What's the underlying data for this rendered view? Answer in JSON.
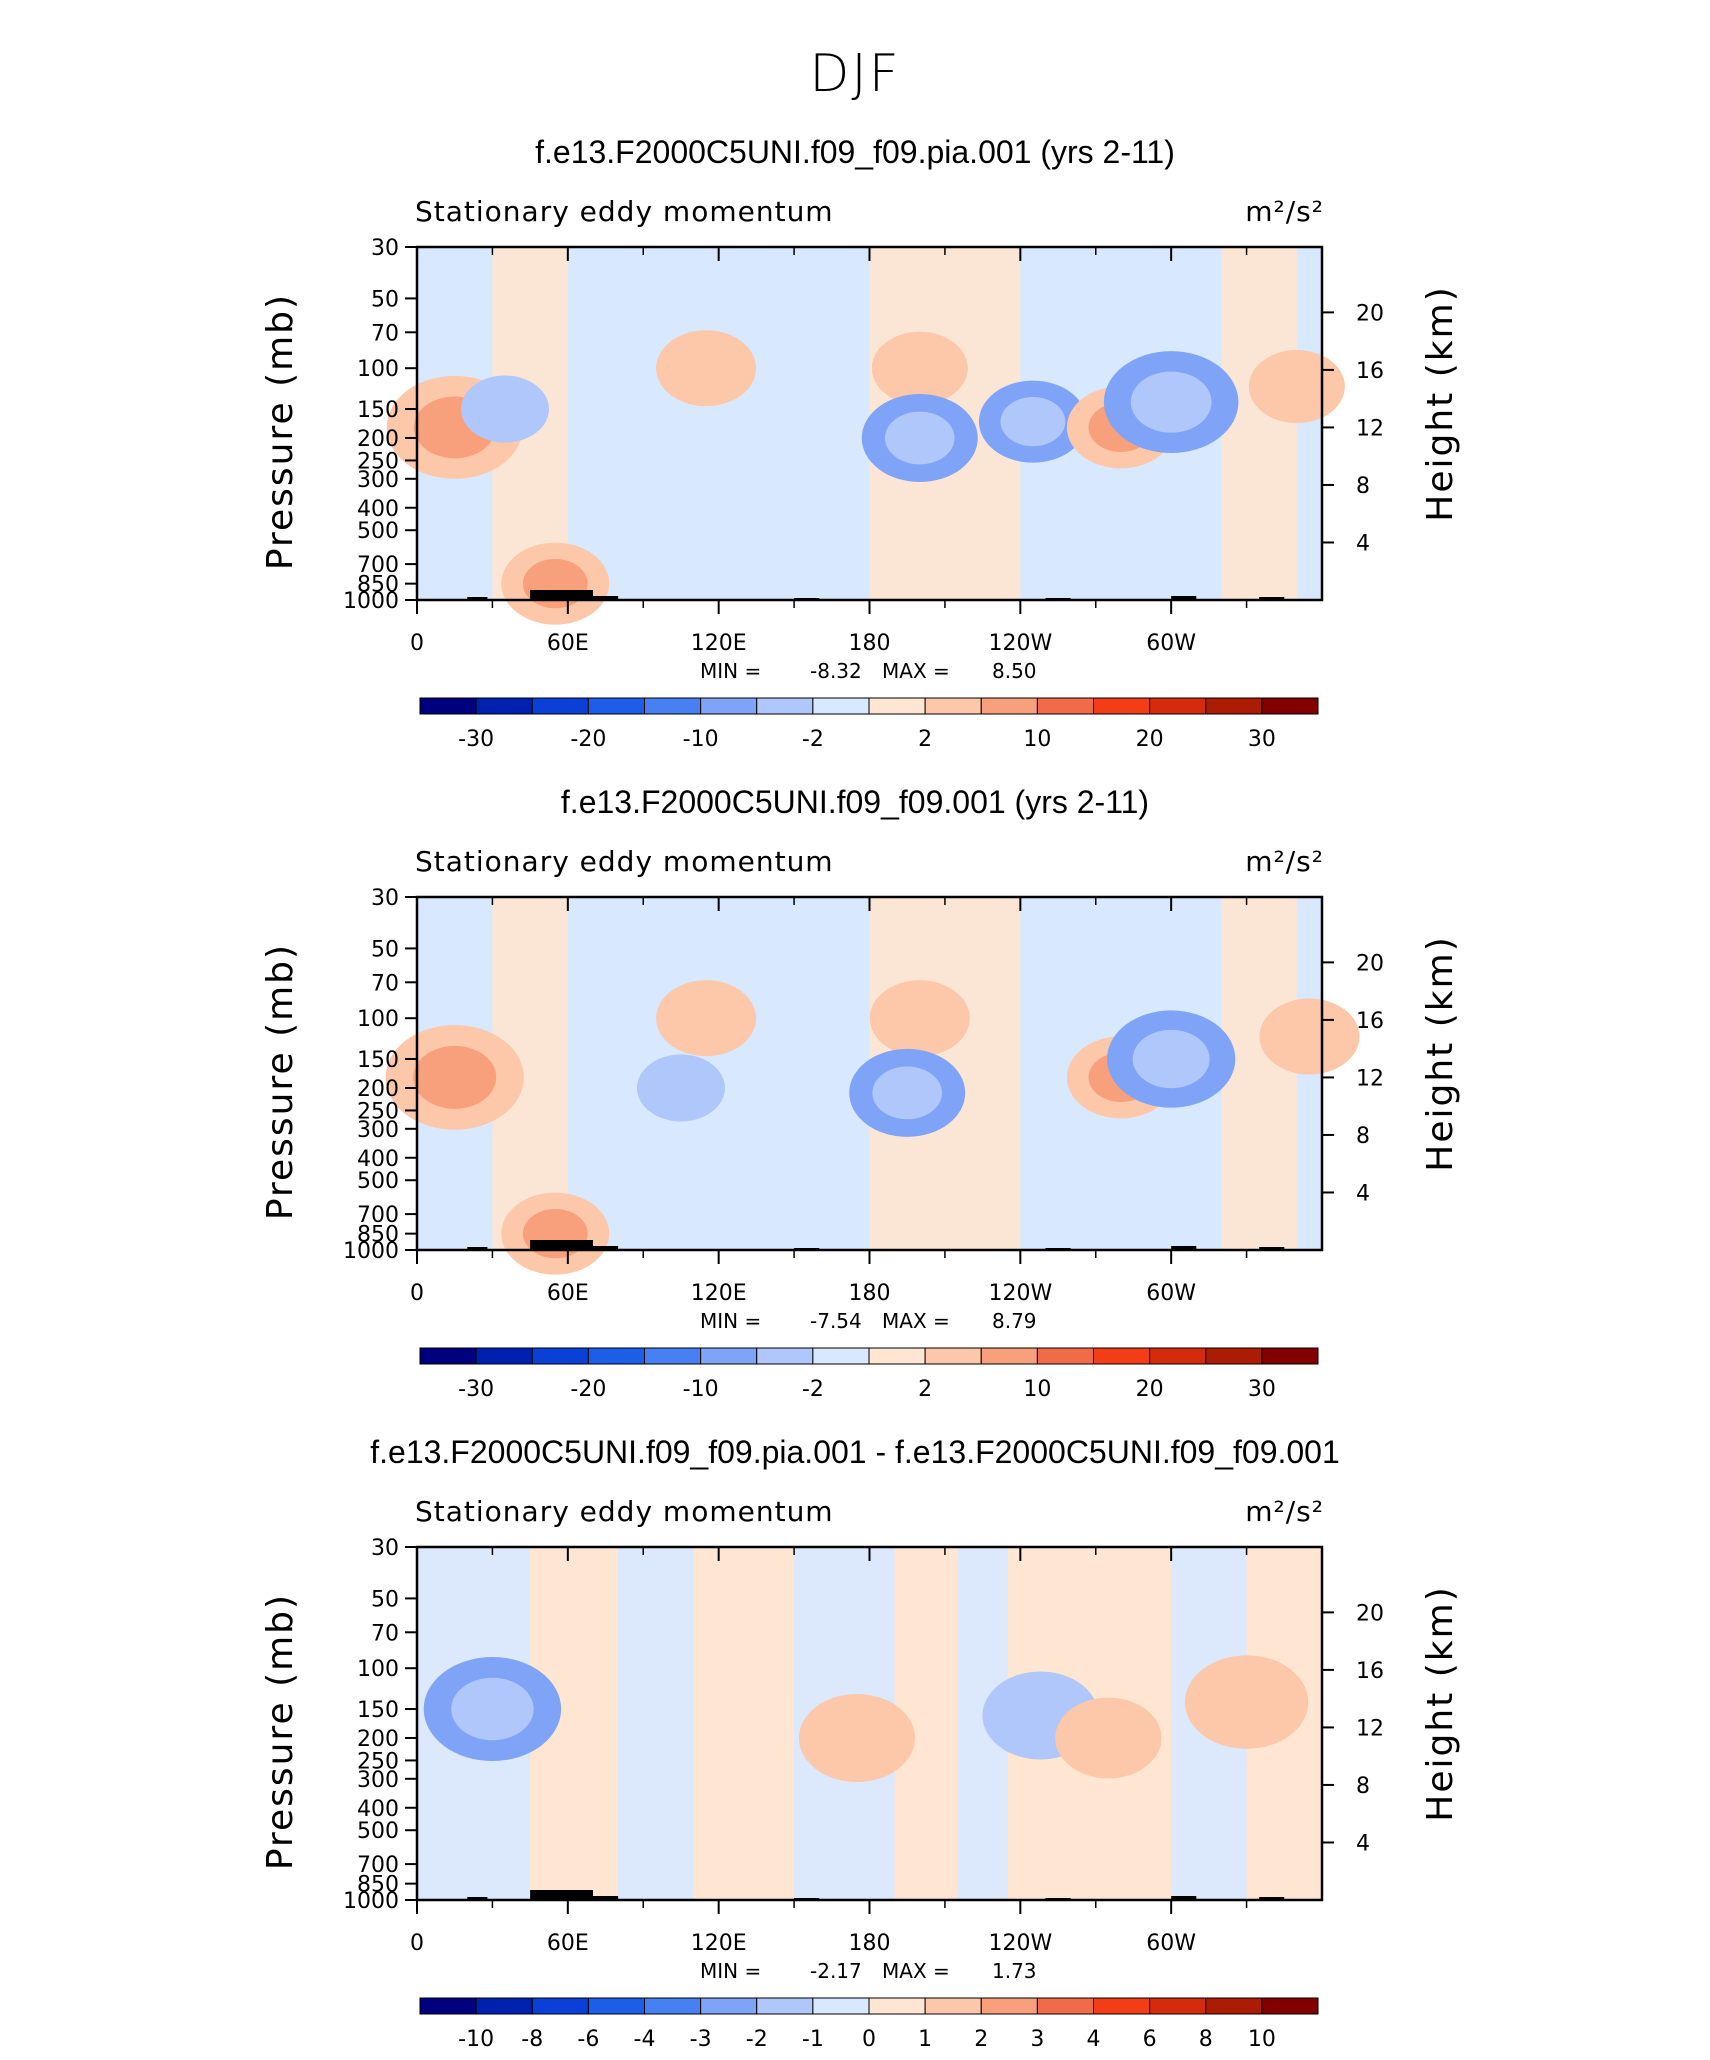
{
  "title": "DJF",
  "chart_data": [
    {
      "type": "heatmap",
      "title": "f.e13.F2000C5UNI.f09_f09.pia.001 (yrs 2-11)",
      "left_label": "Stationary eddy momentum",
      "right_label": "m²/s²",
      "xlabel": "",
      "ylabel": "Pressure (mb)",
      "y2label": "Height (km)",
      "x_ticks": [
        "0",
        "60E",
        "120E",
        "180",
        "120W",
        "60W"
      ],
      "y_ticks": [
        "30",
        "50",
        "70",
        "100",
        "150",
        "200",
        "250",
        "300",
        "400",
        "500",
        "700",
        "850",
        "1000"
      ],
      "y2_ticks": [
        "20",
        "16",
        "12",
        "8",
        "4"
      ],
      "stats": {
        "min_label": "MIN =",
        "min": "-8.32",
        "max_label": "MAX =",
        "max": "8.50"
      },
      "colorbar_labels": [
        "-30",
        "-20",
        "-10",
        "-2",
        "2",
        "10",
        "20",
        "30"
      ],
      "features": [
        {
          "x": 15,
          "p": 180,
          "v": 8.5
        },
        {
          "x": 35,
          "p": 150,
          "v": -2.5
        },
        {
          "x": 55,
          "p": 850,
          "v": 5
        },
        {
          "x": 115,
          "p": 100,
          "v": 4
        },
        {
          "x": 200,
          "p": 100,
          "v": 3.5
        },
        {
          "x": 200,
          "p": 200,
          "v": -6
        },
        {
          "x": 245,
          "p": 170,
          "v": -5
        },
        {
          "x": 280,
          "p": 180,
          "v": 5
        },
        {
          "x": 300,
          "p": 140,
          "v": -8.32
        },
        {
          "x": 350,
          "p": 120,
          "v": 3.5
        }
      ]
    },
    {
      "type": "heatmap",
      "title": "f.e13.F2000C5UNI.f09_f09.001 (yrs 2-11)",
      "left_label": "Stationary eddy momentum",
      "right_label": "m²/s²",
      "xlabel": "",
      "ylabel": "Pressure (mb)",
      "y2label": "Height (km)",
      "x_ticks": [
        "0",
        "60E",
        "120E",
        "180",
        "120W",
        "60W"
      ],
      "y_ticks": [
        "30",
        "50",
        "70",
        "100",
        "150",
        "200",
        "250",
        "300",
        "400",
        "500",
        "700",
        "850",
        "1000"
      ],
      "y2_ticks": [
        "20",
        "16",
        "12",
        "8",
        "4"
      ],
      "stats": {
        "min_label": "MIN =",
        "min": "-7.54",
        "max_label": "MAX =",
        "max": "8.79"
      },
      "colorbar_labels": [
        "-30",
        "-20",
        "-10",
        "-2",
        "2",
        "10",
        "20",
        "30"
      ],
      "features": [
        {
          "x": 15,
          "p": 180,
          "v": 8.79
        },
        {
          "x": 105,
          "p": 200,
          "v": -2.5
        },
        {
          "x": 55,
          "p": 850,
          "v": 5
        },
        {
          "x": 115,
          "p": 100,
          "v": 4
        },
        {
          "x": 200,
          "p": 100,
          "v": 4
        },
        {
          "x": 195,
          "p": 210,
          "v": -6
        },
        {
          "x": 280,
          "p": 180,
          "v": 5
        },
        {
          "x": 300,
          "p": 150,
          "v": -7.54
        },
        {
          "x": 355,
          "p": 120,
          "v": 4
        }
      ]
    },
    {
      "type": "heatmap",
      "title": "f.e13.F2000C5UNI.f09_f09.pia.001 - f.e13.F2000C5UNI.f09_f09.001",
      "left_label": "Stationary eddy momentum",
      "right_label": "m²/s²",
      "xlabel": "",
      "ylabel": "Pressure (mb)",
      "y2label": "Height (km)",
      "x_ticks": [
        "0",
        "60E",
        "120E",
        "180",
        "120W",
        "60W"
      ],
      "y_ticks": [
        "30",
        "50",
        "70",
        "100",
        "150",
        "200",
        "250",
        "300",
        "400",
        "500",
        "700",
        "850",
        "1000"
      ],
      "y2_ticks": [
        "20",
        "16",
        "12",
        "8",
        "4"
      ],
      "stats": {
        "min_label": "MIN =",
        "min": "-2.17",
        "max_label": "MAX =",
        "max": "1.73"
      },
      "colorbar_labels": [
        "-10",
        "-8",
        "-6",
        "-4",
        "-3",
        "-2",
        "-1",
        "0",
        "1",
        "2",
        "3",
        "4",
        "6",
        "8",
        "10"
      ],
      "features": [
        {
          "x": 30,
          "p": 150,
          "v": -2.17
        },
        {
          "x": 175,
          "p": 200,
          "v": 1.5
        },
        {
          "x": 248,
          "p": 160,
          "v": -1.5
        },
        {
          "x": 275,
          "p": 200,
          "v": 1.2
        },
        {
          "x": 330,
          "p": 140,
          "v": 1.73
        }
      ]
    }
  ]
}
